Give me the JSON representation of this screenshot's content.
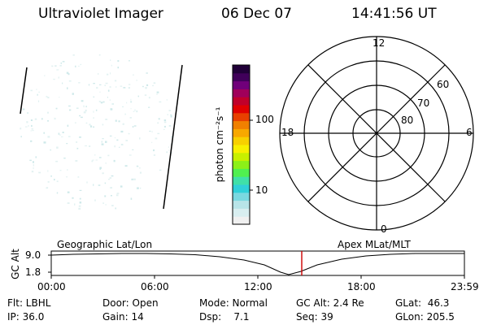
{
  "header": {
    "instrument": "Ultraviolet Imager",
    "date": "06 Dec 07",
    "time": "14:41:56 UT"
  },
  "colorbar": {
    "unit_label": "photon cm⁻²s⁻¹",
    "ticks": [
      "100",
      "10"
    ],
    "colors": [
      "#f0f0f0",
      "#d8eef0",
      "#b8e4e8",
      "#7ad8e0",
      "#30d0d8",
      "#40e0a8",
      "#50f050",
      "#8cf018",
      "#c8f000",
      "#f8f000",
      "#f8d000",
      "#f8a800",
      "#f08000",
      "#e84000",
      "#e00000",
      "#c0002a",
      "#a0005a",
      "#70007a",
      "#40005a",
      "#200038"
    ]
  },
  "polar_plot": {
    "mlt_labels": [
      "12",
      "18",
      "6",
      "0"
    ],
    "mlat_labels": [
      "60",
      "70",
      "80"
    ]
  },
  "bottom_panel": {
    "left_title": "Geographic Lat/Lon",
    "right_title": "Apex MLat/MLT",
    "y_axis_label": "GC Alt",
    "y_ticks": [
      "9.0",
      "1.8"
    ],
    "x_ticks": [
      "00:00",
      "06:00",
      "12:00",
      "18:00",
      "23:59"
    ],
    "current_time_color": "#cc0000"
  },
  "info": {
    "filter": "Flt: LBHL",
    "door": "Door: Open",
    "mode": "Mode: Normal",
    "gc_alt": "GC Alt: 2.4 Re",
    "glat": "GLat:  46.3",
    "ip": "IP: 36.0",
    "gain": "Gain: 14",
    "dsp": "Dsp:    7.1",
    "seq": "Seq: 39",
    "glon": "GLon: 205.5"
  }
}
